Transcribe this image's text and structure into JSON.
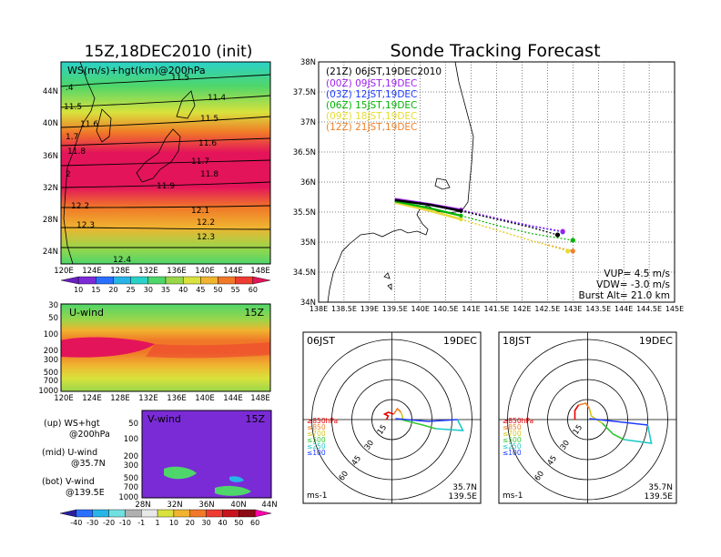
{
  "titles": {
    "left": "15Z,18DEC2010 (init)",
    "right": "Sonde Tracking Forecast"
  },
  "ws_map": {
    "label": "WS(m/s)+hgt(km)@200hPa",
    "xticks": [
      "120E",
      "124E",
      "128E",
      "132E",
      "136E",
      "140E",
      "144E",
      "148E"
    ],
    "yticks": [
      "44N",
      "40N",
      "36N",
      "32N",
      "28N",
      "24N"
    ],
    "contour_labels": [
      "11.5",
      "11.4",
      "11.5",
      "11.6",
      "11.7",
      "11.8",
      "11.9",
      "12.1",
      "12.2",
      "12.3",
      "12.4",
      ".4",
      "11.5",
      "11.6",
      "1.7",
      "11.8",
      "2",
      "12.2",
      "12.3"
    ],
    "colorbar": [
      "10",
      "15",
      "20",
      "25",
      "30",
      "35",
      "40",
      "45",
      "50",
      "55",
      "60"
    ],
    "colors": [
      "#7a2bd6",
      "#2b6fff",
      "#27b5e8",
      "#2ad1c8",
      "#4fd66a",
      "#9ad64a",
      "#d9e23c",
      "#f0b430",
      "#f07828",
      "#ee3c32",
      "#e4145a"
    ]
  },
  "uwind": {
    "label": "U-wind",
    "time": "15Z",
    "yticks": [
      "30",
      "50",
      "100",
      "200",
      "300",
      "500",
      "700",
      "1000"
    ],
    "xticks": [
      "120E",
      "124E",
      "128E",
      "132E",
      "136E",
      "140E",
      "144E",
      "148E"
    ]
  },
  "vwind": {
    "label": "V-wind",
    "time": "15Z",
    "yticks": [
      "50",
      "100",
      "200",
      "300",
      "500",
      "700",
      "1000"
    ],
    "xticks": [
      "28N",
      "32N",
      "36N",
      "40N",
      "44N"
    ],
    "colorbar": [
      "-40",
      "-30",
      "-20",
      "-10",
      "-1",
      "1",
      "10",
      "20",
      "30",
      "40",
      "50",
      "60"
    ]
  },
  "legend_notes": [
    {
      "a": "(up) WS+hgt",
      "b": "@200hPa"
    },
    {
      "a": "(mid) U-wind",
      "b": "@35.7N"
    },
    {
      "a": "(bot) V-wind",
      "b": "@139.5E"
    }
  ],
  "track_map": {
    "legend": [
      {
        "label": "(21Z) 06JST,19DEC2010",
        "color": "#000000"
      },
      {
        "label": "(00Z) 09JST,19DEC",
        "color": "#a020f0"
      },
      {
        "label": "(03Z) 12JST,19DEC",
        "color": "#1e3cff"
      },
      {
        "label": "(06Z) 15JST,19DEC",
        "color": "#00b400"
      },
      {
        "label": "(09Z) 18JST,19DEC",
        "color": "#e6dc32"
      },
      {
        "label": "(12Z) 21JST,19DEC",
        "color": "#f08228"
      }
    ],
    "xticks": [
      "138E",
      "138.5E",
      "139E",
      "139.5E",
      "140E",
      "140.5E",
      "141E",
      "141.5E",
      "142E",
      "142.5E",
      "143E",
      "143.5E",
      "144E",
      "144.5E",
      "145E"
    ],
    "yticks": [
      "38N",
      "37.5N",
      "37N",
      "36.5N",
      "36N",
      "35.5N",
      "35N",
      "34.5N",
      "34N"
    ],
    "params": [
      "VUP= 4.5 m/s",
      "VDW= -3.0 m/s",
      "Burst Alt= 21.0 km"
    ]
  },
  "chart_data": [
    {
      "type": "line",
      "title": "Sonde Tracking Forecast",
      "x_units": "degrees E",
      "y_units": "degrees N",
      "xlim": [
        138,
        145
      ],
      "ylim": [
        34,
        38
      ],
      "series": [
        {
          "name": "(21Z) 06JST,19DEC2010",
          "x": [
            139.5,
            140.2,
            140.8,
            141.5,
            142.2,
            142.7
          ],
          "y": [
            35.7,
            35.62,
            35.52,
            35.38,
            35.24,
            35.12
          ]
        },
        {
          "name": "(00Z) 09JST,19DEC",
          "x": [
            139.5,
            140.2,
            140.8,
            141.5,
            142.2,
            142.8
          ],
          "y": [
            35.72,
            35.63,
            35.54,
            35.4,
            35.27,
            35.18
          ]
        },
        {
          "name": "(03Z) 12JST,19DEC",
          "x": [
            139.5,
            140.2,
            140.8,
            141.5,
            142.2,
            142.8
          ],
          "y": [
            35.7,
            35.62,
            35.52,
            35.38,
            35.26,
            35.17
          ]
        },
        {
          "name": "(06Z) 15JST,19DEC",
          "x": [
            139.5,
            140.2,
            140.8,
            141.5,
            142.2,
            143.0
          ],
          "y": [
            35.68,
            35.56,
            35.44,
            35.28,
            35.14,
            35.03
          ]
        },
        {
          "name": "(09Z) 18JST,19DEC",
          "x": [
            139.5,
            140.2,
            140.8,
            141.5,
            142.2,
            142.9
          ],
          "y": [
            35.66,
            35.52,
            35.38,
            35.2,
            35.02,
            34.85
          ]
        },
        {
          "name": "(12Z) 21JST,19DEC",
          "x": [
            139.5,
            140.2,
            140.8,
            141.5,
            142.2,
            143.0
          ],
          "y": [
            35.66,
            35.52,
            35.38,
            35.2,
            35.02,
            34.85
          ]
        }
      ]
    }
  ],
  "hodographs": [
    {
      "left": "06JST",
      "right": "19DEC",
      "lat": "35.7N",
      "lon": "139.5E",
      "unit": "ms-1",
      "ring_labels": [
        "15",
        "30",
        "45",
        "60"
      ],
      "levels": [
        {
          "label": "≥850hPa",
          "color": "#e60000"
        },
        {
          "label": "≤850",
          "color": "#f08228"
        },
        {
          "label": "≤700",
          "color": "#d2c81e"
        },
        {
          "label": "≤500",
          "color": "#32c832"
        },
        {
          "label": "≤250",
          "color": "#1ec8c8"
        },
        {
          "label": "≤100",
          "color": "#1e3cff"
        }
      ]
    },
    {
      "left": "18JST",
      "right": "19DEC",
      "lat": "35.7N",
      "lon": "139.5E",
      "unit": "ms-1",
      "ring_labels": [
        "15",
        "30",
        "45",
        "60"
      ],
      "levels": [
        {
          "label": "≥850hPa",
          "color": "#e60000"
        },
        {
          "label": "≤850",
          "color": "#f08228"
        },
        {
          "label": "≤700",
          "color": "#d2c81e"
        },
        {
          "label": "≤500",
          "color": "#32c832"
        },
        {
          "label": "≤250",
          "color": "#1ec8c8"
        },
        {
          "label": "≤100",
          "color": "#1e3cff"
        }
      ]
    }
  ]
}
